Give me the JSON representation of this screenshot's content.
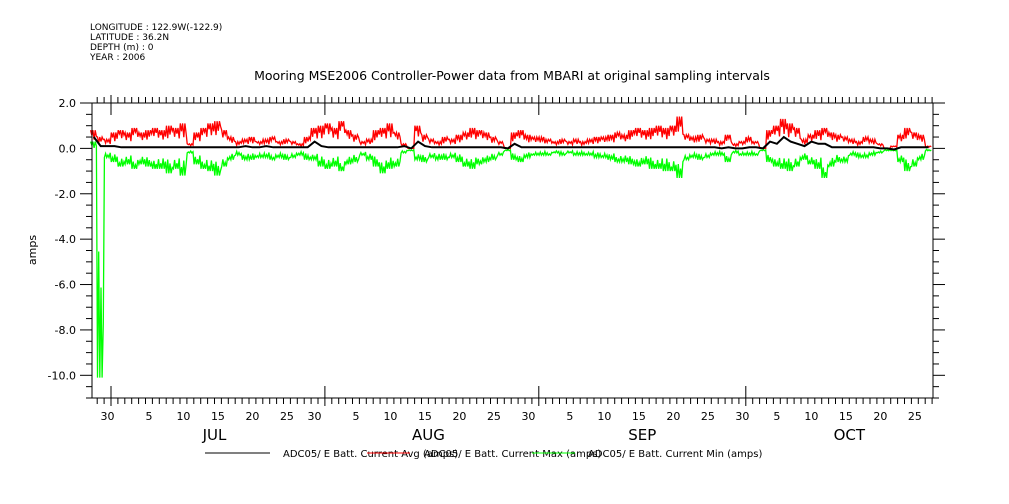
{
  "header": {
    "longitude": "LONGITUDE : 122.9W(-122.9)",
    "latitude": "LATITUDE : 36.2N",
    "depth": "DEPTH (m) : 0",
    "year": "YEAR : 2006"
  },
  "chart_data": {
    "type": "line",
    "title": "Mooring MSE2006 Controller-Power data from MBARI at original sampling intervals",
    "ylabel": "amps",
    "xlabel": "",
    "ylim": [
      -11.0,
      2.0
    ],
    "xlim": [
      "2006-06-28",
      "2006-10-28"
    ],
    "x_start": "2006-06-28",
    "x_step": "1 day",
    "yticks": [
      "2.0",
      "0.0",
      "-2.0",
      "-4.0",
      "-6.0",
      "-8.0",
      "-10.0"
    ],
    "ytick_values": [
      2,
      0,
      -2,
      -4,
      -6,
      -8,
      -10
    ],
    "xtick_labels": [
      {
        "day": 2,
        "label": "30"
      },
      {
        "day": 8,
        "label": "5"
      },
      {
        "day": 13,
        "label": "10"
      },
      {
        "day": 18,
        "label": "15"
      },
      {
        "day": 23,
        "label": "20"
      },
      {
        "day": 28,
        "label": "25"
      },
      {
        "day": 32,
        "label": "30"
      },
      {
        "day": 38,
        "label": "5"
      },
      {
        "day": 43,
        "label": "10"
      },
      {
        "day": 48,
        "label": "15"
      },
      {
        "day": 53,
        "label": "20"
      },
      {
        "day": 58,
        "label": "25"
      },
      {
        "day": 63,
        "label": "30"
      },
      {
        "day": 69,
        "label": "5"
      },
      {
        "day": 74,
        "label": "10"
      },
      {
        "day": 79,
        "label": "15"
      },
      {
        "day": 84,
        "label": "20"
      },
      {
        "day": 89,
        "label": "25"
      },
      {
        "day": 94,
        "label": "30"
      },
      {
        "day": 99,
        "label": "5"
      },
      {
        "day": 104,
        "label": "10"
      },
      {
        "day": 109,
        "label": "15"
      },
      {
        "day": 114,
        "label": "20"
      },
      {
        "day": 119,
        "label": "25"
      }
    ],
    "months": [
      {
        "label": "JUL",
        "day": 18
      },
      {
        "label": "AUG",
        "day": 49
      },
      {
        "label": "SEP",
        "day": 80
      },
      {
        "label": "OCT",
        "day": 110
      }
    ],
    "month_starts": [
      3,
      34,
      65,
      95
    ],
    "grid": false,
    "legend_position": "bottom",
    "series": [
      {
        "name": "ADC05/ E Batt. Current Avg (amps)",
        "color": "#000000",
        "values": [
          0.5,
          0.1,
          0.1,
          0.1,
          0.05,
          0.05,
          0.05,
          0.05,
          0.05,
          0.05,
          0.05,
          0.05,
          0.05,
          0.05,
          0.05,
          0.05,
          0.05,
          0.05,
          0.05,
          0.05,
          0.05,
          0.05,
          0.1,
          0.05,
          0.05,
          0.1,
          0.05,
          0.05,
          0.05,
          0.05,
          0.05,
          0.05,
          0.3,
          0.1,
          0.05,
          0.05,
          0.05,
          0.05,
          0.05,
          0.05,
          0.05,
          0.05,
          0.05,
          0.05,
          0.05,
          0.1,
          0.0,
          0.3,
          0.1,
          0.05,
          0.05,
          0.05,
          0.05,
          0.05,
          0.05,
          0.05,
          0.05,
          0.05,
          0.05,
          0.05,
          0.0,
          0.2,
          0.05,
          0.05,
          0.05,
          0.05,
          0.05,
          0.05,
          0.05,
          0.05,
          0.05,
          0.05,
          0.05,
          0.05,
          0.05,
          0.05,
          0.05,
          0.05,
          0.05,
          0.05,
          0.05,
          0.05,
          0.05,
          0.05,
          0.05,
          0.05,
          0.05,
          0.05,
          0.05,
          0.05,
          0.05,
          0.0,
          0.05,
          0.0,
          0.0,
          0.05,
          0.05,
          0.0,
          0.3,
          0.2,
          0.5,
          0.3,
          0.2,
          0.1,
          0.3,
          0.2,
          0.2,
          0.05,
          0.05,
          0.05,
          0.05,
          0.05,
          0.05,
          0.05,
          0.0,
          0.0,
          -0.05,
          0.05,
          0.05,
          0.05,
          0.05,
          0.05
        ]
      },
      {
        "name": "ADC05/ E Batt. Current Max (amps)",
        "color": "#ff0000",
        "values": [
          0.8,
          0.5,
          0.4,
          0.7,
          0.8,
          0.7,
          0.9,
          0.7,
          0.8,
          0.9,
          0.8,
          1.0,
          0.9,
          1.1,
          0.2,
          0.7,
          0.9,
          1.1,
          1.2,
          0.8,
          0.5,
          0.3,
          0.4,
          0.5,
          0.3,
          0.4,
          0.5,
          0.3,
          0.4,
          0.3,
          0.2,
          0.5,
          0.9,
          1.0,
          1.1,
          0.9,
          1.2,
          0.8,
          0.6,
          0.3,
          0.4,
          0.8,
          0.9,
          1.1,
          0.7,
          0.2,
          0.0,
          1.0,
          0.6,
          0.4,
          0.3,
          0.5,
          0.4,
          0.6,
          0.7,
          0.9,
          0.8,
          0.7,
          0.5,
          0.3,
          0.0,
          0.7,
          0.8,
          0.6,
          0.5,
          0.5,
          0.4,
          0.3,
          0.4,
          0.3,
          0.4,
          0.3,
          0.4,
          0.5,
          0.5,
          0.6,
          0.7,
          0.6,
          0.8,
          0.9,
          0.8,
          0.9,
          1.0,
          0.9,
          1.0,
          1.4,
          0.6,
          0.5,
          0.6,
          0.4,
          0.4,
          0.3,
          0.6,
          0.2,
          0.3,
          0.5,
          0.3,
          0.0,
          0.8,
          1.0,
          1.3,
          1.1,
          0.9,
          0.4,
          0.6,
          0.8,
          0.9,
          0.7,
          0.6,
          0.5,
          0.4,
          0.3,
          0.5,
          0.4,
          0.2,
          0.0,
          0.1,
          0.6,
          0.9,
          0.7,
          0.6,
          0.1
        ]
      },
      {
        "name": "ADC05/ E Batt. Current Min (amps)",
        "color": "#00ff00",
        "values": [
          0.3,
          -10.1,
          -0.4,
          -0.6,
          -0.8,
          -0.7,
          -0.9,
          -0.7,
          -0.8,
          -0.9,
          -0.9,
          -1.1,
          -0.9,
          -1.2,
          -0.2,
          -0.7,
          -0.9,
          -1.0,
          -1.2,
          -0.8,
          -0.5,
          -0.3,
          -0.5,
          -0.5,
          -0.4,
          -0.4,
          -0.5,
          -0.4,
          -0.5,
          -0.4,
          -0.3,
          -0.5,
          -0.5,
          -0.8,
          -0.9,
          -0.8,
          -1.0,
          -0.7,
          -0.6,
          -0.3,
          -0.5,
          -0.8,
          -1.1,
          -0.9,
          -0.8,
          -0.2,
          -0.1,
          -0.5,
          -0.6,
          -0.4,
          -0.5,
          -0.5,
          -0.4,
          -0.6,
          -0.8,
          -0.9,
          -0.7,
          -0.6,
          -0.5,
          -0.3,
          -0.1,
          -0.5,
          -0.6,
          -0.4,
          -0.3,
          -0.3,
          -0.3,
          -0.2,
          -0.3,
          -0.2,
          -0.3,
          -0.3,
          -0.3,
          -0.4,
          -0.4,
          -0.5,
          -0.6,
          -0.6,
          -0.7,
          -0.8,
          -0.7,
          -0.9,
          -0.9,
          -1.0,
          -1.0,
          -1.3,
          -0.5,
          -0.4,
          -0.5,
          -0.4,
          -0.3,
          -0.3,
          -0.6,
          -0.2,
          -0.3,
          -0.3,
          -0.3,
          -0.1,
          -0.6,
          -0.8,
          -0.9,
          -1.0,
          -0.8,
          -0.5,
          -0.7,
          -0.9,
          -1.3,
          -0.8,
          -0.6,
          -0.6,
          -0.3,
          -0.4,
          -0.4,
          -0.3,
          -0.2,
          -0.1,
          -0.1,
          -0.6,
          -1.0,
          -0.8,
          -0.5,
          -0.1
        ]
      }
    ]
  }
}
